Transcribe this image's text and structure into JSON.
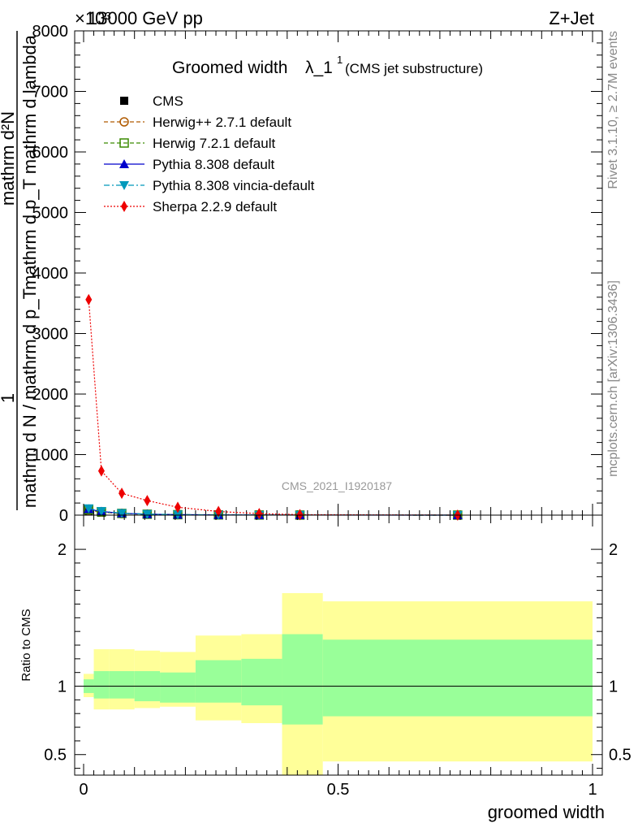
{
  "header": {
    "energy_label": "13000 GeV pp",
    "process_label": "Z+Jet",
    "exponent_label": "×10³"
  },
  "side_text": {
    "rivet": "Rivet 3.1.10, ≥ 2.7M events",
    "mcplots": "mcplots.cern.ch [arXiv:1306.3436]"
  },
  "watermark": "CMS_2021_I1920187",
  "chart_data": [
    {
      "type": "line",
      "panel": "main",
      "title": "Groomed width",
      "title_symbol": "λ_1",
      "title_superscript": "1",
      "subtitle": "(CMS jet substructure)",
      "ylabel_numerator": "1",
      "ylabel_denominator": "mathrm d N / mathrm d p_T",
      "ylabel_fraction_top": "mathrm d²N",
      "ylabel_fraction_bottom": "mathrm d p_T mathrm d lambda",
      "xlim": [
        0,
        1
      ],
      "ylim": [
        0,
        8000
      ],
      "y_ticks": [
        0,
        1000,
        2000,
        3000,
        4000,
        5000,
        6000,
        7000,
        8000
      ],
      "y_tick_labels": [
        "0",
        "1000",
        "2000",
        "3000",
        "4000",
        "5000",
        "6000",
        "7000",
        "8000"
      ],
      "legend_position": "top-left",
      "series": [
        {
          "name": "CMS",
          "color": "#000000",
          "marker": "square-filled",
          "line": "none",
          "x": [
            0.01,
            0.035,
            0.075,
            0.125,
            0.185,
            0.265,
            0.345,
            0.425,
            0.735
          ],
          "y": [
            60,
            40,
            20,
            12,
            6,
            3,
            1.5,
            0.8,
            0.3
          ]
        },
        {
          "name": "Herwig++ 2.7.1 default",
          "color": "#b05a00",
          "marker": "circle-open",
          "line": "dashed",
          "x": [
            0.01,
            0.035,
            0.075,
            0.125,
            0.185,
            0.265,
            0.345,
            0.425,
            0.735
          ],
          "y": [
            80,
            50,
            25,
            14,
            7,
            3.5,
            1.8,
            0.9,
            0.3
          ]
        },
        {
          "name": "Herwig 7.2.1 default",
          "color": "#3a8a00",
          "marker": "square-open",
          "line": "dashed",
          "x": [
            0.01,
            0.035,
            0.075,
            0.125,
            0.185,
            0.265,
            0.345,
            0.425,
            0.735
          ],
          "y": [
            90,
            55,
            28,
            15,
            7.5,
            3.8,
            2,
            1,
            0.3
          ]
        },
        {
          "name": "Pythia 8.308 default",
          "color": "#0000cc",
          "marker": "triangle-up-filled",
          "line": "solid",
          "x": [
            0.01,
            0.035,
            0.075,
            0.125,
            0.185,
            0.265,
            0.345,
            0.425,
            0.735
          ],
          "y": [
            100,
            60,
            30,
            16,
            8,
            4,
            2,
            1,
            0.3
          ]
        },
        {
          "name": "Pythia 8.308 vincia-default",
          "color": "#0099bb",
          "marker": "triangle-down-filled",
          "line": "dashdot",
          "x": [
            0.01,
            0.035,
            0.075,
            0.125,
            0.185,
            0.265,
            0.345,
            0.425,
            0.735
          ],
          "y": [
            110,
            65,
            32,
            17,
            8.5,
            4.2,
            2.1,
            1,
            0.3
          ]
        },
        {
          "name": "Sherpa 2.2.9 default",
          "color": "#ee0000",
          "marker": "diamond-filled",
          "line": "dotted",
          "x": [
            0.01,
            0.035,
            0.075,
            0.125,
            0.185,
            0.265,
            0.345,
            0.425,
            0.735
          ],
          "y": [
            3560,
            730,
            360,
            240,
            130,
            60,
            25,
            8,
            0
          ]
        }
      ]
    },
    {
      "type": "area",
      "panel": "ratio",
      "ylabel": "Ratio to CMS",
      "xlabel": "groomed width",
      "xlim": [
        0,
        1
      ],
      "ylim": [
        0.35,
        2.25
      ],
      "y_ticks": [
        0.5,
        1,
        2
      ],
      "y_tick_labels": [
        "0.5",
        "1",
        "2"
      ],
      "x_ticks": [
        0,
        0.5,
        1
      ],
      "x_tick_labels": [
        "0",
        "0.5",
        "1"
      ],
      "reference_line": 1,
      "bins": [
        {
          "x0": 0.0,
          "x1": 0.02,
          "stat_lo": 0.95,
          "stat_hi": 1.05,
          "tot_lo": 0.92,
          "tot_hi": 1.09
        },
        {
          "x0": 0.02,
          "x1": 0.05,
          "stat_lo": 0.91,
          "stat_hi": 1.11,
          "tot_lo": 0.83,
          "tot_hi": 1.27
        },
        {
          "x0": 0.05,
          "x1": 0.1,
          "stat_lo": 0.91,
          "stat_hi": 1.11,
          "tot_lo": 0.83,
          "tot_hi": 1.27
        },
        {
          "x0": 0.1,
          "x1": 0.15,
          "stat_lo": 0.89,
          "stat_hi": 1.11,
          "tot_lo": 0.84,
          "tot_hi": 1.26
        },
        {
          "x0": 0.15,
          "x1": 0.22,
          "stat_lo": 0.88,
          "stat_hi": 1.1,
          "tot_lo": 0.85,
          "tot_hi": 1.25
        },
        {
          "x0": 0.22,
          "x1": 0.31,
          "stat_lo": 0.88,
          "stat_hi": 1.19,
          "tot_lo": 0.75,
          "tot_hi": 1.37
        },
        {
          "x0": 0.31,
          "x1": 0.39,
          "stat_lo": 0.86,
          "stat_hi": 1.2,
          "tot_lo": 0.73,
          "tot_hi": 1.38
        },
        {
          "x0": 0.39,
          "x1": 0.47,
          "stat_lo": 0.72,
          "stat_hi": 1.38,
          "tot_lo": 0.35,
          "tot_hi": 1.68
        },
        {
          "x0": 0.47,
          "x1": 1.0,
          "stat_lo": 0.78,
          "stat_hi": 1.34,
          "tot_lo": 0.45,
          "tot_hi": 1.62
        }
      ]
    }
  ]
}
